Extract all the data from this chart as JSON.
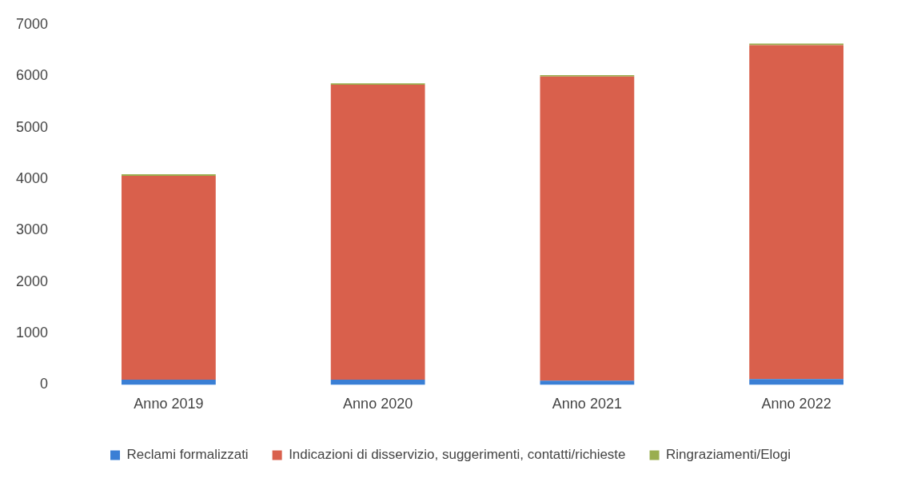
{
  "chart_data": {
    "type": "bar",
    "stacked": true,
    "categories": [
      "Anno 2019",
      "Anno 2020",
      "Anno 2021",
      "Anno 2022"
    ],
    "series": [
      {
        "name": "Reclami formalizzati",
        "color": "#3a7fd5",
        "values": [
          100,
          100,
          80,
          110
        ]
      },
      {
        "name": "Indicazioni di disservizio, suggerimenti, contatti/richieste",
        "color": "#d9604c",
        "values": [
          3960,
          5730,
          5910,
          6490
        ]
      },
      {
        "name": "Ringraziamenti/Elogi",
        "color": "#9aae4f",
        "values": [
          30,
          30,
          30,
          30
        ]
      }
    ],
    "ylim": [
      0,
      7000
    ],
    "yticks": [
      0,
      1000,
      2000,
      3000,
      4000,
      5000,
      6000,
      7000
    ],
    "grid": false,
    "legend": "bottom"
  }
}
